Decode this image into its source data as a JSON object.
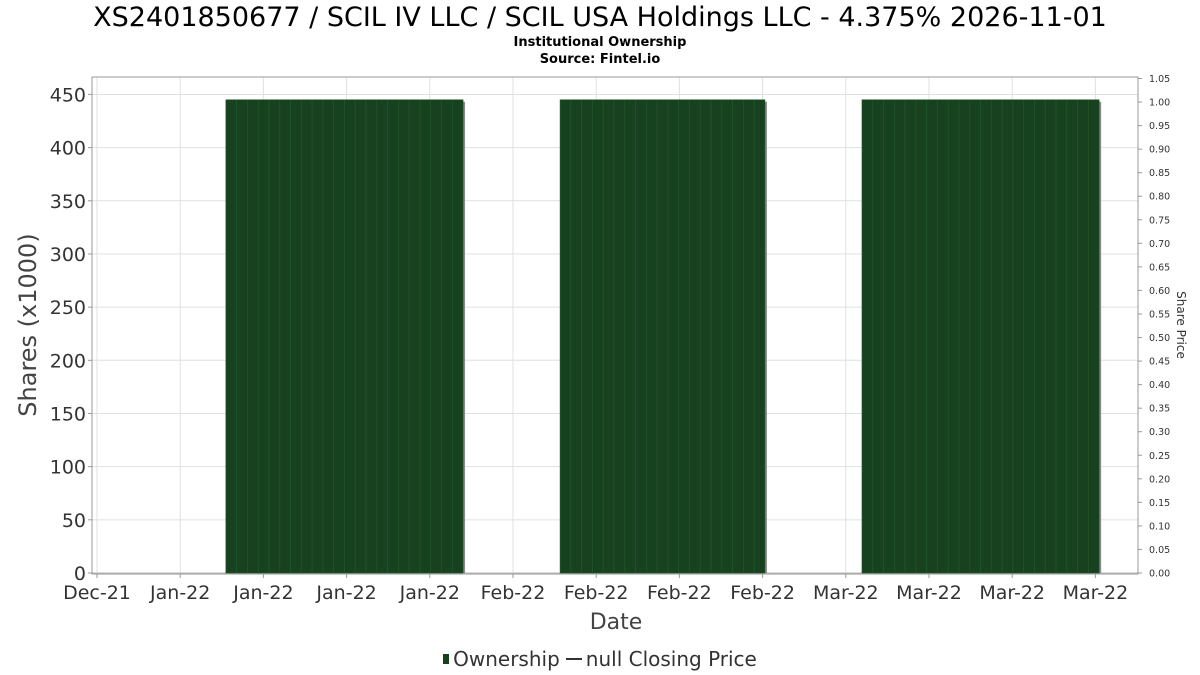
{
  "header": {
    "title": "XS2401850677 / SCIL IV LLC / SCIL USA Holdings LLC - 4.375% 2026-11-01",
    "subtitle": "Institutional Ownership",
    "source": "Source: Fintel.io"
  },
  "legend": {
    "ownership": "Ownership",
    "closing_price": "null Closing Price"
  },
  "colors": {
    "bar_fill": "#18421f",
    "bar_shadow": "#8a8a8a",
    "grid": "#e0e0e0",
    "axis": "#999999"
  },
  "chart_data": {
    "type": "bar",
    "title": "XS2401850677 / SCIL IV LLC / SCIL USA Holdings LLC - 4.375% 2026-11-01",
    "xlabel": "Date",
    "ylabel": "Shares (x1000)",
    "y2label": "Share Price",
    "x_tick_labels": [
      "Dec-21",
      "Jan-22",
      "Jan-22",
      "Jan-22",
      "Jan-22",
      "Feb-22",
      "Feb-22",
      "Feb-22",
      "Feb-22",
      "Mar-22",
      "Mar-22",
      "Mar-22",
      "Mar-22"
    ],
    "ylim": [
      0,
      465
    ],
    "y_ticks": [
      0,
      50,
      100,
      150,
      200,
      250,
      300,
      350,
      400,
      450
    ],
    "y2lim": [
      0,
      1.05
    ],
    "y2_ticks": [
      "0.00",
      "0.05",
      "0.10",
      "0.15",
      "0.20",
      "0.25",
      "0.30",
      "0.35",
      "0.40",
      "0.45",
      "0.50",
      "0.55",
      "0.60",
      "0.65",
      "0.70",
      "0.75",
      "0.80",
      "0.85",
      "0.90",
      "0.95",
      "1.00",
      "1.05"
    ],
    "grid": true,
    "legend_position": "bottom",
    "series": [
      {
        "name": "Ownership",
        "ranges": [
          {
            "start": "2022-01-06",
            "end": "2022-01-27",
            "value": 445
          },
          {
            "start": "2022-02-06",
            "end": "2022-02-24",
            "value": 445
          },
          {
            "start": "2022-03-06",
            "end": "2022-03-27",
            "value": 445
          }
        ]
      },
      {
        "name": "null Closing Price",
        "values": []
      }
    ]
  }
}
